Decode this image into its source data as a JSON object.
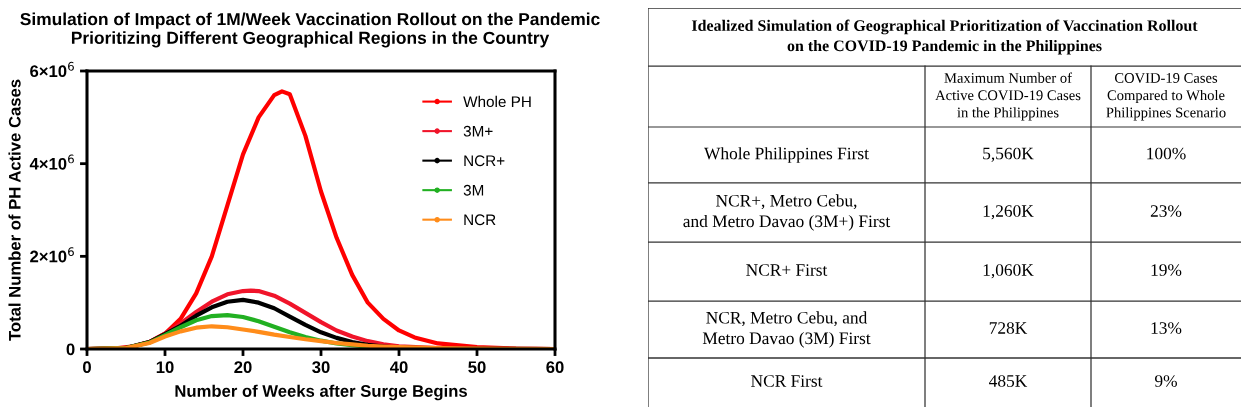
{
  "chart_data": [
    {
      "type": "line",
      "title": "Simulation of Impact of 1M/Week Vaccination Rollout on the Pandemic\nPrioritizing Different Geographical Regions in the Country",
      "xlabel": "Number of Weeks after Surge Begins",
      "ylabel": "Total Number of PH Active Cases",
      "series": [
        {
          "name": "Whole PH",
          "color": "#ff0000",
          "x": [
            0,
            4,
            6,
            8,
            10,
            12,
            14,
            16,
            18,
            20,
            22,
            24,
            25,
            26,
            28,
            30,
            32,
            34,
            36,
            38,
            40,
            42,
            45,
            50,
            55,
            60
          ],
          "values": [
            0,
            20000,
            60000,
            150000,
            330000,
            650000,
            1200000,
            2000000,
            3100000,
            4200000,
            5000000,
            5480000,
            5560000,
            5500000,
            4600000,
            3400000,
            2400000,
            1600000,
            1000000,
            650000,
            400000,
            250000,
            120000,
            40000,
            10000,
            0
          ]
        },
        {
          "name": "3M+",
          "color": "#f0142a",
          "x": [
            0,
            5,
            8,
            10,
            12,
            14,
            16,
            18,
            20,
            21,
            22,
            24,
            26,
            28,
            30,
            32,
            34,
            36,
            38,
            40,
            45,
            50,
            60
          ],
          "values": [
            0,
            20000,
            150000,
            330000,
            550000,
            800000,
            1020000,
            1180000,
            1250000,
            1260000,
            1250000,
            1150000,
            980000,
            780000,
            580000,
            400000,
            270000,
            170000,
            100000,
            60000,
            20000,
            10000,
            0
          ]
        },
        {
          "name": "NCR+",
          "color": "#000000",
          "x": [
            0,
            5,
            8,
            10,
            12,
            14,
            16,
            18,
            20,
            22,
            24,
            26,
            28,
            30,
            32,
            34,
            36,
            38,
            40,
            45,
            60
          ],
          "values": [
            0,
            20000,
            150000,
            320000,
            500000,
            720000,
            900000,
            1020000,
            1060000,
            1000000,
            880000,
            700000,
            520000,
            360000,
            240000,
            150000,
            90000,
            50000,
            30000,
            10000,
            0
          ]
        },
        {
          "name": "3M",
          "color": "#22b022",
          "x": [
            0,
            5,
            8,
            10,
            12,
            14,
            16,
            18,
            20,
            22,
            24,
            26,
            28,
            30,
            32,
            34,
            36
          ],
          "values": [
            0,
            20000,
            140000,
            300000,
            470000,
            620000,
            710000,
            730000,
            690000,
            600000,
            480000,
            360000,
            260000,
            180000,
            120000,
            80000,
            50000
          ]
        },
        {
          "name": "NCR",
          "color": "#ff8c1a",
          "x": [
            0,
            5,
            8,
            10,
            12,
            14,
            16,
            18,
            20,
            22,
            24,
            26,
            28,
            30,
            32,
            34,
            36,
            38,
            40,
            45,
            50,
            60
          ],
          "values": [
            0,
            20000,
            130000,
            270000,
            380000,
            460000,
            490000,
            470000,
            420000,
            370000,
            310000,
            260000,
            210000,
            170000,
            130000,
            100000,
            70000,
            50000,
            40000,
            20000,
            10000,
            0
          ]
        }
      ],
      "xlim": [
        0,
        60
      ],
      "xticks": [
        0,
        10,
        20,
        30,
        40,
        50,
        60
      ],
      "ylim": [
        0,
        6000000
      ],
      "yticks": [
        0,
        {
          "value": 2000000,
          "label": "2×10$^{6}$"
        },
        {
          "value": 4000000,
          "label": "4×10$^{6}$"
        },
        {
          "value": 6000000,
          "label": "6×10$^{6}$"
        }
      ],
      "grid": false,
      "legend": "top right",
      "line_style": "solid"
    },
    {
      "type": "other",
      "title": "Idealized Simulation of Geographical Prioritization of Vaccination Rollout\non the COVID-19 Pandemic in the Philippines",
      "annotations": [
        "Maximum Number of\nActive COVID-19 Cases\nin the Philippines",
        "COVID-19 Cases\nCompared to Whole\nPhilippines Scenario",
        "Whole Philippines First",
        "5,560K",
        "100%",
        "NCR+, Metro Cebu,\nand Metro Davao (3M+) First",
        "1,260K",
        "23%",
        "NCR+ First",
        "1,060K",
        "19%",
        "NCR, Metro Cebu, and\nMetro Davao (3M) First",
        "728K",
        "13%",
        "NCR First",
        "485K",
        "9%"
      ]
    }
  ]
}
